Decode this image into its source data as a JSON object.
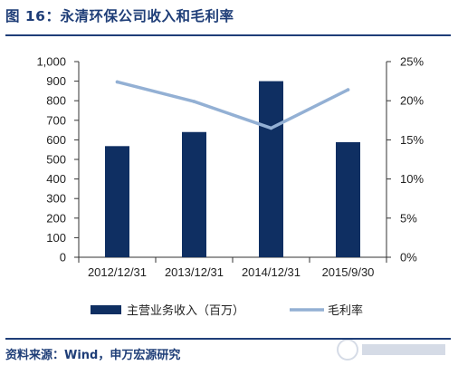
{
  "figure": {
    "title": "图 16：永清环保公司收入和毛利率",
    "source": "资料来源：Wind，申万宏源研究"
  },
  "chart_data": {
    "type": "bar",
    "categories": [
      "2012/12/31",
      "2013/12/31",
      "2014/12/31",
      "2015/9/30"
    ],
    "series": [
      {
        "name": "主营业务收入（百万）",
        "type": "bar",
        "axis": "left",
        "values": [
          568,
          640,
          900,
          588
        ],
        "color": "#0f2f62"
      },
      {
        "name": "毛利率",
        "type": "line",
        "axis": "right",
        "values": [
          0.224,
          0.199,
          0.165,
          0.214
        ],
        "color": "#93b0d4"
      }
    ],
    "y_left": {
      "range": [
        0,
        1000
      ],
      "ticks": [
        0,
        100,
        200,
        300,
        400,
        500,
        600,
        700,
        800,
        900,
        1000
      ],
      "tick_labels": [
        "0",
        "100",
        "200",
        "300",
        "400",
        "500",
        "600",
        "700",
        "800",
        "900",
        "1,000"
      ]
    },
    "y_right": {
      "range": [
        0,
        0.25
      ],
      "ticks": [
        0,
        0.05,
        0.1,
        0.15,
        0.2,
        0.25
      ],
      "tick_labels": [
        "0%",
        "5%",
        "10%",
        "15%",
        "20%",
        "25%"
      ]
    },
    "grid": false,
    "legend": "bottom",
    "watermark_color": "#1f3e78"
  }
}
